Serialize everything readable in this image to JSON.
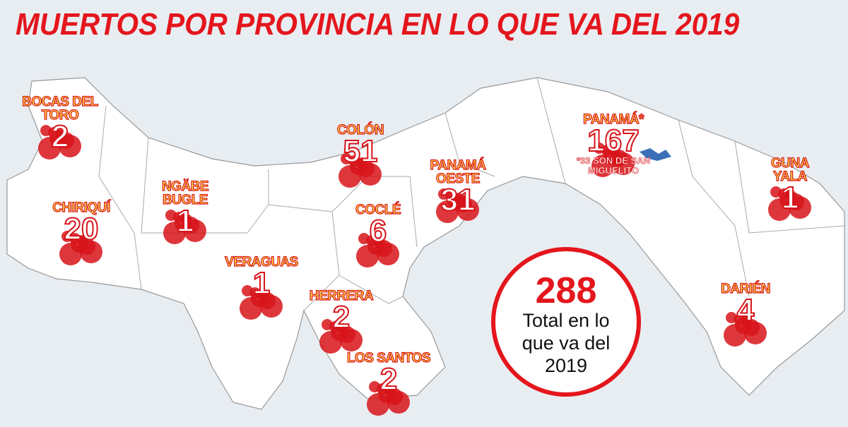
{
  "title": "MUERTOS POR PROVINCIA EN LO QUE VA DEL 2019",
  "regions": [
    {
      "name": "BOCAS DEL TORO",
      "count": "2"
    },
    {
      "name": "COLÓN",
      "count": "51"
    },
    {
      "name": "PANAMÁ OESTE",
      "count": "31"
    },
    {
      "name": "PANAMÁ*",
      "count": "167",
      "note": "*33 SON DE SAN MIGUELITO"
    },
    {
      "name": "GUNA YALA",
      "count": "1"
    },
    {
      "name": "CHIRIQUÍ",
      "count": "20"
    },
    {
      "name": "NGÄBE BUGLE",
      "count": "1"
    },
    {
      "name": "COCLÉ",
      "count": "6"
    },
    {
      "name": "VERAGUAS",
      "count": "1"
    },
    {
      "name": "HERRERA",
      "count": "2"
    },
    {
      "name": "LOS SANTOS",
      "count": "2"
    },
    {
      "name": "DARIÉN",
      "count": "4"
    }
  ],
  "total": {
    "value": "288",
    "label": "Total en lo que va del 2019"
  }
}
